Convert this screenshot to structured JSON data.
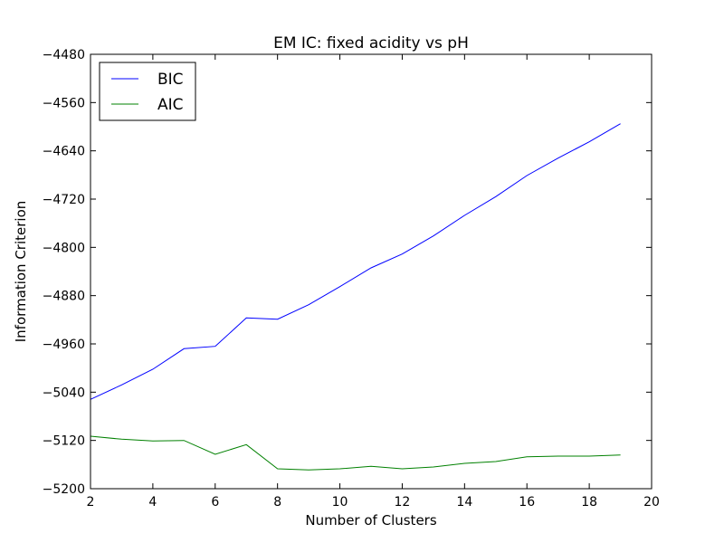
{
  "chart_data": {
    "type": "line",
    "title": "EM IC: fixed acidity vs pH",
    "xlabel": "Number of Clusters",
    "ylabel": "Information Criterion",
    "xlim": [
      2,
      20
    ],
    "ylim": [
      -5200,
      -4480
    ],
    "xticks": [
      2,
      4,
      6,
      8,
      10,
      12,
      14,
      16,
      18,
      20
    ],
    "xtick_labels": [
      "2",
      "4",
      "6",
      "8",
      "10",
      "12",
      "14",
      "16",
      "18",
      "20"
    ],
    "yticks": [
      -4480,
      -4560,
      -4640,
      -4720,
      -4800,
      -4880,
      -4960,
      -5040,
      -5120,
      -5200
    ],
    "ytick_labels": [
      "−4480",
      "−4560",
      "−4640",
      "−4720",
      "−4800",
      "−4880",
      "−4960",
      "−5040",
      "−5120",
      "−5200"
    ],
    "grid": false,
    "legend_position": "upper-left",
    "x": [
      2,
      3,
      4,
      5,
      6,
      7,
      8,
      9,
      10,
      11,
      12,
      13,
      14,
      15,
      16,
      17,
      18,
      19
    ],
    "series": [
      {
        "name": "BIC",
        "color": "#0000ff",
        "values": [
          -5052,
          -5028,
          -5002,
          -4968,
          -4964,
          -4917,
          -4919,
          -4895,
          -4865,
          -4834,
          -4811,
          -4781,
          -4747,
          -4716,
          -4681,
          -4652,
          -4625,
          -4595
        ]
      },
      {
        "name": "AIC",
        "color": "#008000",
        "values": [
          -5113,
          -5118,
          -5121,
          -5120,
          -5143,
          -5127,
          -5167,
          -5169,
          -5167,
          -5163,
          -5167,
          -5164,
          -5158,
          -5155,
          -5147,
          -5146,
          -5146,
          -5144
        ]
      }
    ]
  }
}
